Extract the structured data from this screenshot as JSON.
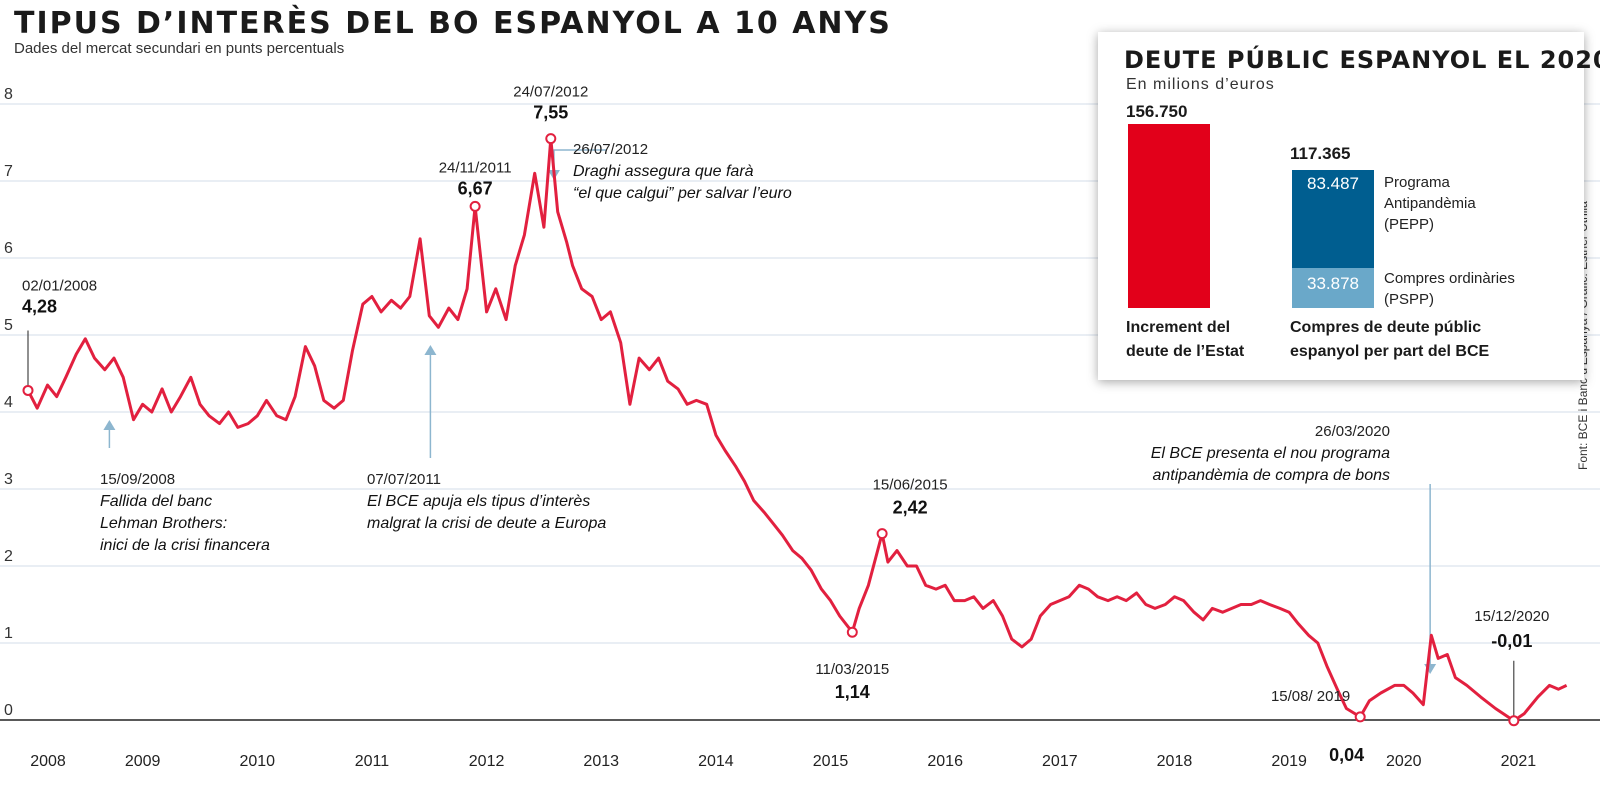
{
  "header": {
    "title": "TIPUS D’INTERÈS DEL BO ESPANYOL A 10 ANYS",
    "subtitle": "Dades del mercat secundari en punts percentuals",
    "source": "Font: BCE i Banc d’Espanya / Gràfic: Esther Utrilla"
  },
  "colors": {
    "line": "#e2203f",
    "grid": "#d3dce8",
    "arrow": "#8db6cf",
    "red_bar": "#e2001a",
    "pepp": "#005e90",
    "pspp": "#6aa8c9"
  },
  "chart_data": {
    "type": "line",
    "title": "TIPUS D’INTERÈS DEL BO ESPANYOL A 10 ANYS",
    "ylabel": "Dades del mercat secundari en punts percentuals",
    "ylim": [
      0,
      8
    ],
    "xlim": [
      2008.0,
      2021.45
    ],
    "y_ticks": [
      "0",
      "1",
      "2",
      "3",
      "4",
      "5",
      "6",
      "7",
      "8"
    ],
    "x_ticks": [
      "2008",
      "2009",
      "2010",
      "2011",
      "2012",
      "2013",
      "2014",
      "2015",
      "2016",
      "2017",
      "2018",
      "2019",
      "2020",
      "2021"
    ],
    "series": [
      {
        "name": "Bo espanyol a 10 anys",
        "points": [
          [
            2008.0,
            4.28
          ],
          [
            2008.08,
            4.05
          ],
          [
            2008.17,
            4.35
          ],
          [
            2008.25,
            4.2
          ],
          [
            2008.33,
            4.45
          ],
          [
            2008.42,
            4.75
          ],
          [
            2008.5,
            4.95
          ],
          [
            2008.58,
            4.7
          ],
          [
            2008.67,
            4.55
          ],
          [
            2008.75,
            4.7
          ],
          [
            2008.83,
            4.45
          ],
          [
            2008.92,
            3.9
          ],
          [
            2009.0,
            4.1
          ],
          [
            2009.08,
            4.0
          ],
          [
            2009.17,
            4.3
          ],
          [
            2009.25,
            4.0
          ],
          [
            2009.33,
            4.2
          ],
          [
            2009.42,
            4.45
          ],
          [
            2009.5,
            4.1
          ],
          [
            2009.58,
            3.95
          ],
          [
            2009.67,
            3.85
          ],
          [
            2009.75,
            4.0
          ],
          [
            2009.83,
            3.8
          ],
          [
            2009.92,
            3.85
          ],
          [
            2010.0,
            3.95
          ],
          [
            2010.08,
            4.15
          ],
          [
            2010.17,
            3.95
          ],
          [
            2010.25,
            3.9
          ],
          [
            2010.33,
            4.2
          ],
          [
            2010.42,
            4.85
          ],
          [
            2010.5,
            4.6
          ],
          [
            2010.58,
            4.15
          ],
          [
            2010.67,
            4.05
          ],
          [
            2010.75,
            4.15
          ],
          [
            2010.83,
            4.8
          ],
          [
            2010.92,
            5.4
          ],
          [
            2011.0,
            5.5
          ],
          [
            2011.08,
            5.3
          ],
          [
            2011.17,
            5.45
          ],
          [
            2011.25,
            5.35
          ],
          [
            2011.33,
            5.5
          ],
          [
            2011.42,
            6.25
          ],
          [
            2011.5,
            5.25
          ],
          [
            2011.58,
            5.1
          ],
          [
            2011.67,
            5.35
          ],
          [
            2011.75,
            5.2
          ],
          [
            2011.83,
            5.6
          ],
          [
            2011.9,
            6.67
          ],
          [
            2012.0,
            5.3
          ],
          [
            2012.08,
            5.6
          ],
          [
            2012.17,
            5.2
          ],
          [
            2012.25,
            5.9
          ],
          [
            2012.33,
            6.3
          ],
          [
            2012.42,
            7.1
          ],
          [
            2012.5,
            6.4
          ],
          [
            2012.56,
            7.55
          ],
          [
            2012.62,
            6.6
          ],
          [
            2012.7,
            6.2
          ],
          [
            2012.75,
            5.9
          ],
          [
            2012.83,
            5.6
          ],
          [
            2012.92,
            5.5
          ],
          [
            2013.0,
            5.2
          ],
          [
            2013.08,
            5.3
          ],
          [
            2013.17,
            4.9
          ],
          [
            2013.25,
            4.1
          ],
          [
            2013.33,
            4.7
          ],
          [
            2013.42,
            4.55
          ],
          [
            2013.5,
            4.7
          ],
          [
            2013.58,
            4.4
          ],
          [
            2013.67,
            4.3
          ],
          [
            2013.75,
            4.1
          ],
          [
            2013.83,
            4.15
          ],
          [
            2013.92,
            4.1
          ],
          [
            2014.0,
            3.7
          ],
          [
            2014.08,
            3.5
          ],
          [
            2014.17,
            3.3
          ],
          [
            2014.25,
            3.1
          ],
          [
            2014.33,
            2.85
          ],
          [
            2014.42,
            2.7
          ],
          [
            2014.5,
            2.55
          ],
          [
            2014.58,
            2.4
          ],
          [
            2014.67,
            2.2
          ],
          [
            2014.75,
            2.1
          ],
          [
            2014.83,
            1.95
          ],
          [
            2014.92,
            1.7
          ],
          [
            2015.0,
            1.55
          ],
          [
            2015.08,
            1.35
          ],
          [
            2015.19,
            1.14
          ],
          [
            2015.25,
            1.45
          ],
          [
            2015.33,
            1.75
          ],
          [
            2015.45,
            2.42
          ],
          [
            2015.5,
            2.05
          ],
          [
            2015.58,
            2.2
          ],
          [
            2015.67,
            2.0
          ],
          [
            2015.75,
            2.0
          ],
          [
            2015.83,
            1.75
          ],
          [
            2015.92,
            1.7
          ],
          [
            2016.0,
            1.75
          ],
          [
            2016.08,
            1.55
          ],
          [
            2016.17,
            1.55
          ],
          [
            2016.25,
            1.6
          ],
          [
            2016.33,
            1.45
          ],
          [
            2016.42,
            1.55
          ],
          [
            2016.5,
            1.35
          ],
          [
            2016.58,
            1.05
          ],
          [
            2016.67,
            0.95
          ],
          [
            2016.75,
            1.05
          ],
          [
            2016.83,
            1.35
          ],
          [
            2016.92,
            1.5
          ],
          [
            2017.0,
            1.55
          ],
          [
            2017.08,
            1.6
          ],
          [
            2017.17,
            1.75
          ],
          [
            2017.25,
            1.7
          ],
          [
            2017.33,
            1.6
          ],
          [
            2017.42,
            1.55
          ],
          [
            2017.5,
            1.6
          ],
          [
            2017.58,
            1.55
          ],
          [
            2017.67,
            1.65
          ],
          [
            2017.75,
            1.5
          ],
          [
            2017.83,
            1.45
          ],
          [
            2017.92,
            1.5
          ],
          [
            2018.0,
            1.6
          ],
          [
            2018.08,
            1.55
          ],
          [
            2018.17,
            1.4
          ],
          [
            2018.25,
            1.3
          ],
          [
            2018.33,
            1.45
          ],
          [
            2018.42,
            1.4
          ],
          [
            2018.5,
            1.45
          ],
          [
            2018.58,
            1.5
          ],
          [
            2018.67,
            1.5
          ],
          [
            2018.75,
            1.55
          ],
          [
            2018.83,
            1.5
          ],
          [
            2018.92,
            1.45
          ],
          [
            2019.0,
            1.4
          ],
          [
            2019.08,
            1.25
          ],
          [
            2019.17,
            1.1
          ],
          [
            2019.25,
            1.0
          ],
          [
            2019.33,
            0.7
          ],
          [
            2019.42,
            0.4
          ],
          [
            2019.5,
            0.15
          ],
          [
            2019.62,
            0.04
          ],
          [
            2019.7,
            0.25
          ],
          [
            2019.8,
            0.35
          ],
          [
            2019.92,
            0.45
          ],
          [
            2020.0,
            0.45
          ],
          [
            2020.08,
            0.35
          ],
          [
            2020.17,
            0.2
          ],
          [
            2020.24,
            1.1
          ],
          [
            2020.3,
            0.8
          ],
          [
            2020.38,
            0.85
          ],
          [
            2020.45,
            0.55
          ],
          [
            2020.55,
            0.45
          ],
          [
            2020.67,
            0.3
          ],
          [
            2020.8,
            0.15
          ],
          [
            2020.9,
            0.05
          ],
          [
            2020.96,
            -0.01
          ],
          [
            2021.05,
            0.08
          ],
          [
            2021.17,
            0.3
          ],
          [
            2021.27,
            0.45
          ],
          [
            2021.35,
            0.4
          ],
          [
            2021.42,
            0.45
          ]
        ]
      }
    ],
    "highlights": [
      {
        "date": "02/01/2008",
        "value": "4,28",
        "x": 2008.0,
        "y": 4.28
      },
      {
        "date": "24/11/2011",
        "value": "6,67",
        "x": 2011.9,
        "y": 6.67
      },
      {
        "date": "24/07/2012",
        "value": "7,55",
        "x": 2012.56,
        "y": 7.55
      },
      {
        "date": "11/03/2015",
        "value": "1,14",
        "x": 2015.19,
        "y": 1.14
      },
      {
        "date": "15/06/2015",
        "value": "2,42",
        "x": 2015.45,
        "y": 2.42
      },
      {
        "date": "15/08/ 2019",
        "value": "0,04",
        "x": 2019.62,
        "y": 0.04
      },
      {
        "date": "15/12/2020",
        "value": "-0,01",
        "x": 2020.96,
        "y": -0.01
      }
    ],
    "annotations": [
      {
        "date": "15/09/2008",
        "lines": [
          "Fallida del banc",
          "Lehman Brothers:",
          "inici de la crisi financera"
        ],
        "x": 2008.71
      },
      {
        "date": "07/07/2011",
        "lines": [
          "El BCE apuja els tipus d’interès",
          "malgrat la crisi de deute a Europa"
        ],
        "x": 2011.51
      },
      {
        "date": "26/07/2012",
        "lines": [
          "Draghi assegura que farà",
          "“el que calgui” per salvar l’euro"
        ],
        "x": 2012.57
      },
      {
        "date": "26/03/2020",
        "lines": [
          "El BCE presenta el nou programa",
          "antipandèmia de compra de bons"
        ],
        "x": 2020.23
      }
    ]
  },
  "inset": {
    "title": "DEUTE PÚBLIC ESPANYOL EL 2020",
    "subtitle": "En milions d’euros",
    "bars": [
      {
        "name": "Increment del deute de l’Estat",
        "total": "156.750",
        "value": 156750,
        "caption_lines": [
          "Increment del",
          "deute de l’Estat"
        ]
      },
      {
        "name": "Compres de deute públic espanyol per part del BCE",
        "total": "117.365",
        "value": 117365,
        "caption_lines": [
          "Compres de deute públic",
          "espanyol per part del BCE"
        ],
        "segments": [
          {
            "label": "83.487",
            "value": 83487,
            "legend_lines": [
              "Programa",
              "Antipandèmia",
              "(PEPP)"
            ]
          },
          {
            "label": "33.878",
            "value": 33878,
            "legend_lines": [
              "Compres ordinàries",
              "(PSPP)"
            ]
          }
        ]
      }
    ]
  }
}
